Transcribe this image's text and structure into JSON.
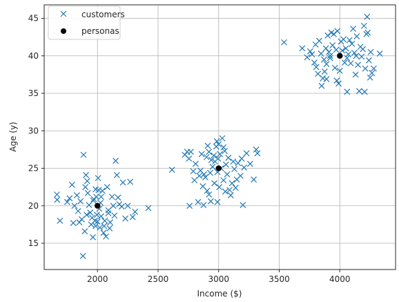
{
  "chart_data": {
    "type": "scatter",
    "xlabel": "Income ($)",
    "ylabel": "Age (y)",
    "xlim": [
      1560,
      4460
    ],
    "ylim": [
      11.5,
      46.8
    ],
    "xticks": [
      2000,
      2500,
      3000,
      3500,
      4000
    ],
    "yticks": [
      15,
      20,
      25,
      30,
      35,
      40,
      45
    ],
    "grid": true,
    "legend_position": "top-left",
    "series": [
      {
        "name": "customers",
        "marker": "x",
        "color": "#1f77b4",
        "points": [
          [
            1665,
            21.5
          ],
          [
            1667,
            20.8
          ],
          [
            1690,
            18.0
          ],
          [
            1750,
            20.5
          ],
          [
            1770,
            21.0
          ],
          [
            1790,
            22.8
          ],
          [
            1810,
            20.0
          ],
          [
            1800,
            17.7
          ],
          [
            1830,
            21.4
          ],
          [
            1840,
            19.3
          ],
          [
            1850,
            17.8
          ],
          [
            1860,
            20.6
          ],
          [
            1870,
            18.2
          ],
          [
            1880,
            13.3
          ],
          [
            1885,
            26.8
          ],
          [
            1895,
            16.6
          ],
          [
            1900,
            22.5
          ],
          [
            1905,
            24.1
          ],
          [
            1910,
            18.8
          ],
          [
            1915,
            23.3
          ],
          [
            1920,
            21.7
          ],
          [
            1930,
            20.1
          ],
          [
            1940,
            19.1
          ],
          [
            1948,
            17.5
          ],
          [
            1955,
            18.4
          ],
          [
            1962,
            15.8
          ],
          [
            1970,
            20.9
          ],
          [
            1978,
            18.0
          ],
          [
            1985,
            17.3
          ],
          [
            1990,
            21.2
          ],
          [
            1995,
            18.8
          ],
          [
            2000,
            17.9
          ],
          [
            2005,
            23.7
          ],
          [
            2010,
            22.1
          ],
          [
            2015,
            19.6
          ],
          [
            2020,
            17.1
          ],
          [
            2025,
            20.4
          ],
          [
            2030,
            18.6
          ],
          [
            2040,
            22.0
          ],
          [
            2050,
            16.4
          ],
          [
            2055,
            17.3
          ],
          [
            2060,
            18.0
          ],
          [
            2070,
            15.9
          ],
          [
            2080,
            22.5
          ],
          [
            2090,
            19.4
          ],
          [
            2100,
            17.0
          ],
          [
            2105,
            17.8
          ],
          [
            2120,
            21.2
          ],
          [
            2130,
            20.0
          ],
          [
            2140,
            18.7
          ],
          [
            2150,
            26.0
          ],
          [
            2160,
            24.1
          ],
          [
            2170,
            21.1
          ],
          [
            2180,
            20.2
          ],
          [
            2200,
            19.9
          ],
          [
            2210,
            23.1
          ],
          [
            2230,
            18.3
          ],
          [
            2250,
            20.0
          ],
          [
            2270,
            23.2
          ],
          [
            2290,
            18.5
          ],
          [
            2310,
            19.2
          ],
          [
            2420,
            19.7
          ],
          [
            1965,
            20.7
          ],
          [
            1985,
            22.2
          ],
          [
            2030,
            21.2
          ],
          [
            2090,
            19.0
          ],
          [
            2615,
            24.8
          ],
          [
            2720,
            26.8
          ],
          [
            2740,
            27.2
          ],
          [
            2755,
            26.3
          ],
          [
            2760,
            20.0
          ],
          [
            2770,
            27.2
          ],
          [
            2790,
            24.6
          ],
          [
            2800,
            23.4
          ],
          [
            2810,
            25.6
          ],
          [
            2830,
            20.5
          ],
          [
            2840,
            24.0
          ],
          [
            2850,
            24.7
          ],
          [
            2860,
            26.9
          ],
          [
            2870,
            22.6
          ],
          [
            2875,
            20.1
          ],
          [
            2880,
            24.2
          ],
          [
            2890,
            23.8
          ],
          [
            2900,
            26.5
          ],
          [
            2905,
            22.0
          ],
          [
            2910,
            28.0
          ],
          [
            2920,
            27.2
          ],
          [
            2930,
            24.4
          ],
          [
            2935,
            20.6
          ],
          [
            2940,
            26.1
          ],
          [
            2950,
            25.2
          ],
          [
            2960,
            26.7
          ],
          [
            2965,
            23.0
          ],
          [
            2970,
            25.9
          ],
          [
            2980,
            27.9
          ],
          [
            2985,
            28.6
          ],
          [
            2990,
            24.5
          ],
          [
            2995,
            26.3
          ],
          [
            3000,
            28.2
          ],
          [
            3005,
            22.5
          ],
          [
            3010,
            26.9
          ],
          [
            3020,
            25.0
          ],
          [
            3030,
            29.0
          ],
          [
            3040,
            23.4
          ],
          [
            3050,
            27.3
          ],
          [
            3055,
            21.9
          ],
          [
            3060,
            25.5
          ],
          [
            3070,
            24.2
          ],
          [
            3080,
            26.4
          ],
          [
            3090,
            22.1
          ],
          [
            3100,
            21.4
          ],
          [
            3110,
            23.0
          ],
          [
            3120,
            25.9
          ],
          [
            3130,
            24.9
          ],
          [
            3140,
            22.4
          ],
          [
            3150,
            23.5
          ],
          [
            3160,
            25.7
          ],
          [
            3180,
            24.0
          ],
          [
            3190,
            26.3
          ],
          [
            3200,
            20.1
          ],
          [
            3210,
            25.1
          ],
          [
            3230,
            27.0
          ],
          [
            3260,
            25.6
          ],
          [
            3290,
            23.5
          ],
          [
            3310,
            27.5
          ],
          [
            3320,
            27.0
          ],
          [
            2920,
            21.5
          ],
          [
            2990,
            20.5
          ],
          [
            3040,
            27.8
          ],
          [
            3540,
            41.8
          ],
          [
            3690,
            41.0
          ],
          [
            3730,
            39.8
          ],
          [
            3755,
            40.6
          ],
          [
            3770,
            40.2
          ],
          [
            3790,
            39.1
          ],
          [
            3800,
            41.5
          ],
          [
            3805,
            38.5
          ],
          [
            3820,
            37.6
          ],
          [
            3830,
            42.0
          ],
          [
            3845,
            40.3
          ],
          [
            3850,
            36.0
          ],
          [
            3860,
            37.0
          ],
          [
            3870,
            39.5
          ],
          [
            3875,
            37.9
          ],
          [
            3885,
            41.0
          ],
          [
            3890,
            38.9
          ],
          [
            3900,
            42.7
          ],
          [
            3910,
            40.5
          ],
          [
            3920,
            39.7
          ],
          [
            3930,
            43.1
          ],
          [
            3940,
            41.4
          ],
          [
            3950,
            42.9
          ],
          [
            3960,
            38.4
          ],
          [
            3970,
            40.8
          ],
          [
            3975,
            36.7
          ],
          [
            3980,
            43.3
          ],
          [
            3990,
            36.3
          ],
          [
            4000,
            38.0
          ],
          [
            4010,
            41.9
          ],
          [
            4020,
            40.7
          ],
          [
            4030,
            42.2
          ],
          [
            4040,
            39.1
          ],
          [
            4050,
            41.0
          ],
          [
            4060,
            35.2
          ],
          [
            4070,
            40.2
          ],
          [
            4080,
            42.1
          ],
          [
            4090,
            39.0
          ],
          [
            4100,
            41.6
          ],
          [
            4110,
            43.6
          ],
          [
            4120,
            40.4
          ],
          [
            4130,
            37.5
          ],
          [
            4140,
            42.6
          ],
          [
            4150,
            38.8
          ],
          [
            4160,
            35.3
          ],
          [
            4170,
            41.2
          ],
          [
            4180,
            39.9
          ],
          [
            4190,
            40.9
          ],
          [
            4200,
            44.0
          ],
          [
            4205,
            35.2
          ],
          [
            4210,
            38.3
          ],
          [
            4220,
            42.9
          ],
          [
            4225,
            45.2
          ],
          [
            4230,
            43.1
          ],
          [
            4240,
            39.4
          ],
          [
            4250,
            37.1
          ],
          [
            4255,
            40.5
          ],
          [
            4265,
            37.7
          ],
          [
            4280,
            38.3
          ],
          [
            4330,
            40.3
          ],
          [
            3890,
            36.9
          ],
          [
            3920,
            40.0
          ],
          [
            4060,
            39.7
          ],
          [
            4135,
            40.0
          ]
        ]
      },
      {
        "name": "personas",
        "marker": "o",
        "color": "#000000",
        "points": [
          [
            2000,
            20
          ],
          [
            3000,
            25
          ],
          [
            4000,
            40
          ]
        ]
      }
    ]
  }
}
